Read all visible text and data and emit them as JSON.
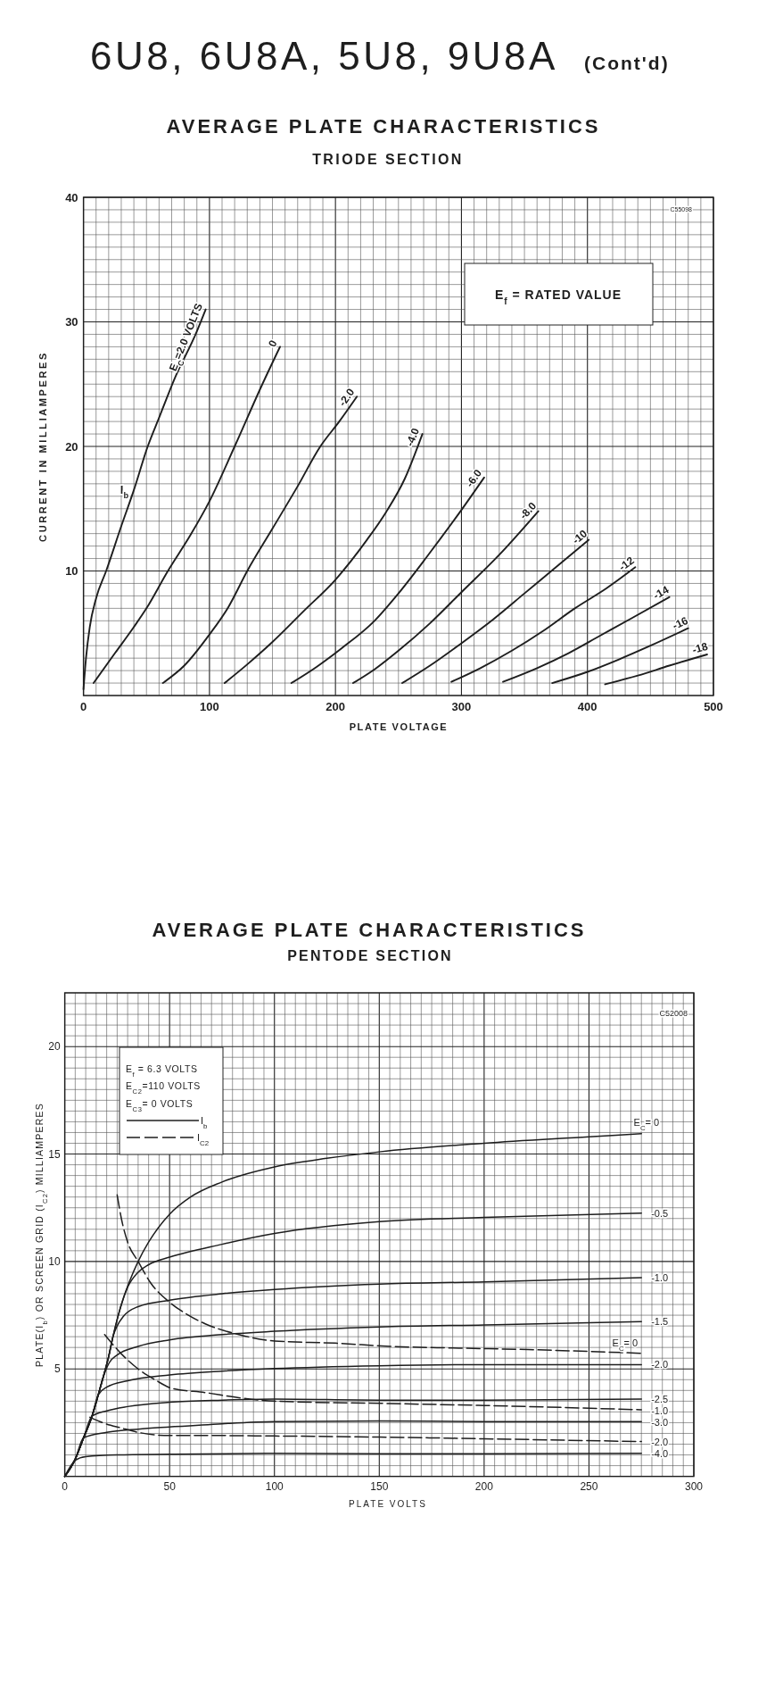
{
  "chart_data": [
    {
      "type": "line",
      "title": "AVERAGE PLATE CHARACTERISTICS",
      "subtitle": "TRIODE SECTION",
      "xlabel": "PLATE VOLTAGE",
      "ylabel": "CURRENT IN MILLIAMPERES",
      "xlim": [
        0,
        500
      ],
      "ylim": [
        0,
        40
      ],
      "xticks": [
        0,
        {
          "value": 10,
          "label": null
        },
        {
          "value": 20,
          "label": null
        },
        {
          "value": 30,
          "label": null
        },
        {
          "value": 40,
          "label": null
        },
        {
          "value": 50,
          "label": null
        },
        {
          "value": 60,
          "label": null
        },
        {
          "value": 70,
          "label": null
        },
        {
          "value": 80,
          "label": null
        },
        {
          "value": 90,
          "label": null
        },
        100,
        {
          "value": 110,
          "label": null
        },
        {
          "value": 120,
          "label": null
        },
        {
          "value": 130,
          "label": null
        },
        {
          "value": 140,
          "label": null
        },
        {
          "value": 150,
          "label": null
        },
        {
          "value": 160,
          "label": null
        },
        {
          "value": 170,
          "label": null
        },
        {
          "value": 180,
          "label": null
        },
        {
          "value": 190,
          "label": null
        },
        200,
        {
          "value": 210,
          "label": null
        },
        {
          "value": 220,
          "label": null
        },
        {
          "value": 230,
          "label": null
        },
        {
          "value": 240,
          "label": null
        },
        {
          "value": 250,
          "label": null
        },
        {
          "value": 260,
          "label": null
        },
        {
          "value": 270,
          "label": null
        },
        {
          "value": 280,
          "label": null
        },
        {
          "value": 290,
          "label": null
        },
        300,
        {
          "value": 310,
          "label": null
        },
        {
          "value": 320,
          "label": null
        },
        {
          "value": 330,
          "label": null
        },
        {
          "value": 340,
          "label": null
        },
        {
          "value": 350,
          "label": null
        },
        {
          "value": 360,
          "label": null
        },
        {
          "value": 370,
          "label": null
        },
        {
          "value": 380,
          "label": null
        },
        {
          "value": 390,
          "label": null
        },
        400,
        {
          "value": 410,
          "label": null
        },
        {
          "value": 420,
          "label": null
        },
        {
          "value": 430,
          "label": null
        },
        {
          "value": 440,
          "label": null
        },
        {
          "value": 450,
          "label": null
        },
        {
          "value": 460,
          "label": null
        },
        {
          "value": 470,
          "label": null
        },
        {
          "value": 480,
          "label": null
        },
        {
          "value": 490,
          "label": null
        },
        500
      ],
      "yticks": [
        {
          "value": 0,
          "label": null
        },
        {
          "value": 1,
          "label": null
        },
        {
          "value": 2,
          "label": null
        },
        {
          "value": 3,
          "label": null
        },
        {
          "value": 4,
          "label": null
        },
        {
          "value": 5,
          "label": null
        },
        {
          "value": 6,
          "label": null
        },
        {
          "value": 7,
          "label": null
        },
        {
          "value": 8,
          "label": null
        },
        {
          "value": 9,
          "label": null
        },
        10,
        {
          "value": 11,
          "label": null
        },
        {
          "value": 12,
          "label": null
        },
        {
          "value": 13,
          "label": null
        },
        {
          "value": 14,
          "label": null
        },
        {
          "value": 15,
          "label": null
        },
        {
          "value": 16,
          "label": null
        },
        {
          "value": 17,
          "label": null
        },
        {
          "value": 18,
          "label": null
        },
        {
          "value": 19,
          "label": null
        },
        20,
        {
          "value": 21,
          "label": null
        },
        {
          "value": 22,
          "label": null
        },
        {
          "value": 23,
          "label": null
        },
        {
          "value": 24,
          "label": null
        },
        {
          "value": 25,
          "label": null
        },
        {
          "value": 26,
          "label": null
        },
        {
          "value": 27,
          "label": null
        },
        {
          "value": 28,
          "label": null
        },
        {
          "value": 29,
          "label": null
        },
        30,
        {
          "value": 31,
          "label": null
        },
        {
          "value": 32,
          "label": null
        },
        {
          "value": 33,
          "label": null
        },
        {
          "value": 34,
          "label": null
        },
        {
          "value": 35,
          "label": null
        },
        {
          "value": 36,
          "label": null
        },
        {
          "value": 37,
          "label": null
        },
        {
          "value": 38,
          "label": null
        },
        {
          "value": 39,
          "label": null
        },
        40
      ],
      "grid": true,
      "annotations": [
        "6U8, 6U8A, 5U8, 9U8A",
        "(Cont'd)",
        "E$_{f}$ = RATED VALUE",
        "C55098",
        {
          "text": "I$_{b}$",
          "x": 40,
          "y": 16.5
        }
      ],
      "series": [
        {
          "name": "E$_{C}$=2.0 VOLTS",
          "color": "#1e1e1e",
          "x": [
            0,
            2,
            5,
            10,
            18,
            30,
            40,
            51,
            60,
            73,
            89,
            97
          ],
          "values": [
            0.5,
            3,
            5.5,
            7.8,
            10,
            13.6,
            16.5,
            20,
            22.3,
            25.6,
            29,
            31
          ]
        },
        {
          "name": "0",
          "color": "#1e1e1e",
          "x": [
            8,
            25,
            40,
            50,
            67,
            85,
            100,
            120,
            142,
            156
          ],
          "values": [
            1,
            3.4,
            5.5,
            7,
            10,
            12.9,
            15.6,
            20,
            25,
            28
          ]
        },
        {
          "name": "-2.0",
          "color": "#1e1e1e",
          "x": [
            63,
            80,
            100,
            115,
            130,
            150,
            170,
            188,
            203,
            217
          ],
          "values": [
            1,
            2.4,
            4.9,
            7.1,
            10,
            13.4,
            16.8,
            20,
            22,
            24
          ]
        },
        {
          "name": "-4.0",
          "color": "#1e1e1e",
          "x": [
            112,
            130,
            150,
            175,
            200,
            225,
            240,
            255,
            269
          ],
          "values": [
            1,
            2.5,
            4.3,
            6.8,
            9.3,
            12.5,
            14.7,
            17.4,
            21
          ]
        },
        {
          "name": "-6.0",
          "color": "#1e1e1e",
          "x": [
            165,
            185,
            205,
            231,
            250,
            273,
            300,
            318
          ],
          "values": [
            1,
            2.3,
            3.8,
            6,
            8.2,
            11.2,
            14.9,
            17.5
          ]
        },
        {
          "name": "-8.0",
          "color": "#1e1e1e",
          "x": [
            214,
            231,
            250,
            275,
            300,
            330,
            361
          ],
          "values": [
            1,
            2.1,
            3.6,
            5.8,
            8.3,
            11.3,
            14.8
          ]
        },
        {
          "name": "-10",
          "color": "#1e1e1e",
          "x": [
            253,
            275,
            300,
            325,
            350,
            375,
            401
          ],
          "values": [
            1,
            2.4,
            4.2,
            6.1,
            8.2,
            10.3,
            12.5
          ]
        },
        {
          "name": "-12",
          "color": "#1e1e1e",
          "x": [
            292,
            315,
            340,
            365,
            390,
            415,
            438
          ],
          "values": [
            1.1,
            2.2,
            3.6,
            5.2,
            7,
            8.6,
            10.3
          ]
        },
        {
          "name": "-14",
          "color": "#1e1e1e",
          "x": [
            333,
            360,
            385,
            410,
            435,
            465
          ],
          "values": [
            1.1,
            2.2,
            3.4,
            4.8,
            6.2,
            7.9
          ]
        },
        {
          "name": "-16",
          "color": "#1e1e1e",
          "x": [
            372,
            400,
            425,
            450,
            480
          ],
          "values": [
            1,
            1.9,
            2.9,
            4,
            5.4
          ]
        },
        {
          "name": "-18",
          "color": "#1e1e1e",
          "x": [
            414,
            440,
            465,
            495
          ],
          "values": [
            0.9,
            1.6,
            2.4,
            3.3
          ]
        }
      ]
    },
    {
      "type": "line",
      "title": "AVERAGE PLATE CHARACTERISTICS",
      "subtitle": "PENTODE SECTION",
      "xlabel": "PLATE VOLTS",
      "ylabel": "PLATE(I$_{b}$) OR SCREEN GRID (I$_{C2}$) MILLIAMPERES",
      "xlim": [
        0,
        300
      ],
      "ylim": [
        0,
        22.5
      ],
      "xticks": [
        0,
        {
          "value": 5,
          "label": null
        },
        {
          "value": 10,
          "label": null
        },
        {
          "value": 15,
          "label": null
        },
        {
          "value": 20,
          "label": null
        },
        {
          "value": 25,
          "label": null
        },
        {
          "value": 30,
          "label": null
        },
        {
          "value": 35,
          "label": null
        },
        {
          "value": 40,
          "label": null
        },
        {
          "value": 45,
          "label": null
        },
        50,
        {
          "value": 55,
          "label": null
        },
        {
          "value": 60,
          "label": null
        },
        {
          "value": 65,
          "label": null
        },
        {
          "value": 70,
          "label": null
        },
        {
          "value": 75,
          "label": null
        },
        {
          "value": 80,
          "label": null
        },
        {
          "value": 85,
          "label": null
        },
        {
          "value": 90,
          "label": null
        },
        {
          "value": 95,
          "label": null
        },
        100,
        {
          "value": 105,
          "label": null
        },
        {
          "value": 110,
          "label": null
        },
        {
          "value": 115,
          "label": null
        },
        {
          "value": 120,
          "label": null
        },
        {
          "value": 125,
          "label": null
        },
        {
          "value": 130,
          "label": null
        },
        {
          "value": 135,
          "label": null
        },
        {
          "value": 140,
          "label": null
        },
        {
          "value": 145,
          "label": null
        },
        150,
        {
          "value": 155,
          "label": null
        },
        {
          "value": 160,
          "label": null
        },
        {
          "value": 165,
          "label": null
        },
        {
          "value": 170,
          "label": null
        },
        {
          "value": 175,
          "label": null
        },
        {
          "value": 180,
          "label": null
        },
        {
          "value": 185,
          "label": null
        },
        {
          "value": 190,
          "label": null
        },
        {
          "value": 195,
          "label": null
        },
        200,
        {
          "value": 205,
          "label": null
        },
        {
          "value": 210,
          "label": null
        },
        {
          "value": 215,
          "label": null
        },
        {
          "value": 220,
          "label": null
        },
        {
          "value": 225,
          "label": null
        },
        {
          "value": 230,
          "label": null
        },
        {
          "value": 235,
          "label": null
        },
        {
          "value": 240,
          "label": null
        },
        {
          "value": 245,
          "label": null
        },
        250,
        {
          "value": 255,
          "label": null
        },
        {
          "value": 260,
          "label": null
        },
        {
          "value": 265,
          "label": null
        },
        {
          "value": 270,
          "label": null
        },
        {
          "value": 275,
          "label": null
        },
        {
          "value": 280,
          "label": null
        },
        {
          "value": 285,
          "label": null
        },
        {
          "value": 290,
          "label": null
        },
        {
          "value": 295,
          "label": null
        },
        300
      ],
      "yticks": [
        {
          "value": 0,
          "label": null
        },
        {
          "value": 0.5,
          "label": null
        },
        {
          "value": 1,
          "label": null
        },
        {
          "value": 1.5,
          "label": null
        },
        {
          "value": 2,
          "label": null
        },
        {
          "value": 2.5,
          "label": null
        },
        {
          "value": 3,
          "label": null
        },
        {
          "value": 3.5,
          "label": null
        },
        {
          "value": 4,
          "label": null
        },
        {
          "value": 4.5,
          "label": null
        },
        5,
        {
          "value": 5.5,
          "label": null
        },
        {
          "value": 6,
          "label": null
        },
        {
          "value": 6.5,
          "label": null
        },
        {
          "value": 7,
          "label": null
        },
        {
          "value": 7.5,
          "label": null
        },
        {
          "value": 8,
          "label": null
        },
        {
          "value": 8.5,
          "label": null
        },
        {
          "value": 9,
          "label": null
        },
        {
          "value": 9.5,
          "label": null
        },
        10,
        {
          "value": 10.5,
          "label": null
        },
        {
          "value": 11,
          "label": null
        },
        {
          "value": 11.5,
          "label": null
        },
        {
          "value": 12,
          "label": null
        },
        {
          "value": 12.5,
          "label": null
        },
        {
          "value": 13,
          "label": null
        },
        {
          "value": 13.5,
          "label": null
        },
        {
          "value": 14,
          "label": null
        },
        {
          "value": 14.5,
          "label": null
        },
        15,
        {
          "value": 15.5,
          "label": null
        },
        {
          "value": 16,
          "label": null
        },
        {
          "value": 16.5,
          "label": null
        },
        {
          "value": 17,
          "label": null
        },
        {
          "value": 17.5,
          "label": null
        },
        {
          "value": 18,
          "label": null
        },
        {
          "value": 18.5,
          "label": null
        },
        {
          "value": 19,
          "label": null
        },
        {
          "value": 19.5,
          "label": null
        },
        20,
        {
          "value": 20.5,
          "label": null
        },
        {
          "value": 21,
          "label": null
        },
        {
          "value": 21.5,
          "label": null
        },
        {
          "value": 22,
          "label": null
        },
        {
          "value": 22.5,
          "label": null
        }
      ],
      "grid": true,
      "annotations": [
        "E$_{f}$ = 6.3 VOLTS",
        "E$_{C2}$=110 VOLTS",
        "E$_{C3}$= 0 VOLTS",
        "I$_{b}$",
        "I$_{C2}$",
        "C52008"
      ],
      "series": [
        {
          "name": "E$_{C}$= 0",
          "color": "#1e1e1e",
          "x": [
            0,
            5,
            9,
            13,
            16,
            18,
            21,
            23,
            25,
            28,
            31,
            35,
            40,
            50,
            60,
            75,
            100,
            125,
            150,
            200,
            250,
            275
          ],
          "values": [
            0,
            0.8,
            1.8,
            2.8,
            3.8,
            4.5,
            5.6,
            6.5,
            7.3,
            8.3,
            9.1,
            10,
            10.9,
            12.2,
            13,
            13.7,
            14.4,
            14.8,
            15.1,
            15.5,
            15.8,
            15.95
          ]
        },
        {
          "name": "-0.5",
          "color": "#1e1e1e",
          "x": [
            0,
            5,
            9,
            13,
            16,
            18,
            21,
            23,
            25,
            27,
            30,
            35,
            40,
            50,
            75,
            100,
            150,
            200,
            275
          ],
          "values": [
            0,
            0.8,
            1.8,
            2.8,
            3.8,
            4.5,
            5.6,
            6.5,
            7.3,
            8,
            8.8,
            9.5,
            9.85,
            10.2,
            10.8,
            11.3,
            11.85,
            12.05,
            12.25
          ]
        },
        {
          "name": "-1.0",
          "color": "#1e1e1e",
          "x": [
            0,
            5,
            9,
            13,
            16,
            18,
            21,
            23,
            25,
            28,
            35,
            50,
            75,
            100,
            150,
            200,
            275
          ],
          "values": [
            0,
            0.8,
            1.8,
            2.8,
            3.8,
            4.5,
            5.6,
            6.5,
            7,
            7.45,
            7.9,
            8.2,
            8.5,
            8.7,
            8.95,
            9.05,
            9.25
          ]
        },
        {
          "name": "-1.5",
          "color": "#1e1e1e",
          "x": [
            0,
            5,
            9,
            13,
            16,
            18,
            21,
            25,
            35,
            50,
            75,
            100,
            150,
            200,
            275
          ],
          "values": [
            0,
            0.8,
            1.8,
            2.8,
            3.8,
            4.5,
            5.25,
            5.65,
            6.05,
            6.35,
            6.6,
            6.75,
            6.95,
            7.05,
            7.2
          ]
        },
        {
          "name": "-2.0",
          "color": "#1e1e1e",
          "x": [
            0,
            5,
            9,
            13,
            16,
            20,
            30,
            50,
            75,
            100,
            150,
            200,
            275
          ],
          "values": [
            0,
            0.8,
            1.8,
            2.8,
            3.8,
            4.15,
            4.45,
            4.72,
            4.9,
            5.02,
            5.15,
            5.2,
            5.2
          ]
        },
        {
          "name": "-2.5",
          "color": "#1e1e1e",
          "x": [
            0,
            5,
            9,
            13,
            20,
            30,
            50,
            75,
            100,
            150,
            200,
            275
          ],
          "values": [
            0,
            0.8,
            1.8,
            2.8,
            3.05,
            3.25,
            3.45,
            3.55,
            3.6,
            3.55,
            3.55,
            3.6
          ]
        },
        {
          "name": "-3.0",
          "color": "#1e1e1e",
          "x": [
            0,
            5,
            9,
            20,
            35,
            50,
            75,
            100,
            150,
            200,
            275
          ],
          "values": [
            0,
            0.8,
            1.8,
            2.05,
            2.2,
            2.3,
            2.45,
            2.55,
            2.58,
            2.55,
            2.55
          ]
        },
        {
          "name": "-4.0",
          "color": "#1e1e1e",
          "x": [
            0,
            5,
            10,
            25,
            50,
            100,
            150,
            200,
            275
          ],
          "values": [
            0,
            0.75,
            0.92,
            1,
            1.03,
            1.07,
            1.05,
            1.05,
            1.07
          ]
        },
        {
          "name": "E$_{C}$= 0",
          "color": "#1e1e1e",
          "line_style": "dashed",
          "x": [
            25,
            27,
            30,
            35,
            41,
            50,
            59,
            67,
            83,
            100,
            129,
            155,
            188,
            221,
            275
          ],
          "values": [
            13.1,
            12,
            10.9,
            10,
            9,
            8.1,
            7.5,
            7.1,
            6.6,
            6.3,
            6.2,
            6.05,
            5.97,
            5.9,
            5.73
          ]
        },
        {
          "name": "-1.0",
          "color": "#1e1e1e",
          "line_style": "dashed",
          "x": [
            19,
            27,
            35,
            43,
            51,
            67,
            83,
            100,
            155,
            200,
            275
          ],
          "values": [
            6.6,
            5.7,
            5,
            4.5,
            4.1,
            3.9,
            3.66,
            3.5,
            3.39,
            3.3,
            3.1
          ]
        },
        {
          "name": "-2.0",
          "color": "#1e1e1e",
          "line_style": "dashed",
          "x": [
            12,
            18,
            27,
            35,
            50,
            75,
            100,
            150,
            200,
            275
          ],
          "values": [
            2.75,
            2.5,
            2.25,
            2.05,
            1.9,
            1.9,
            1.88,
            1.83,
            1.75,
            1.62
          ]
        }
      ]
    }
  ]
}
